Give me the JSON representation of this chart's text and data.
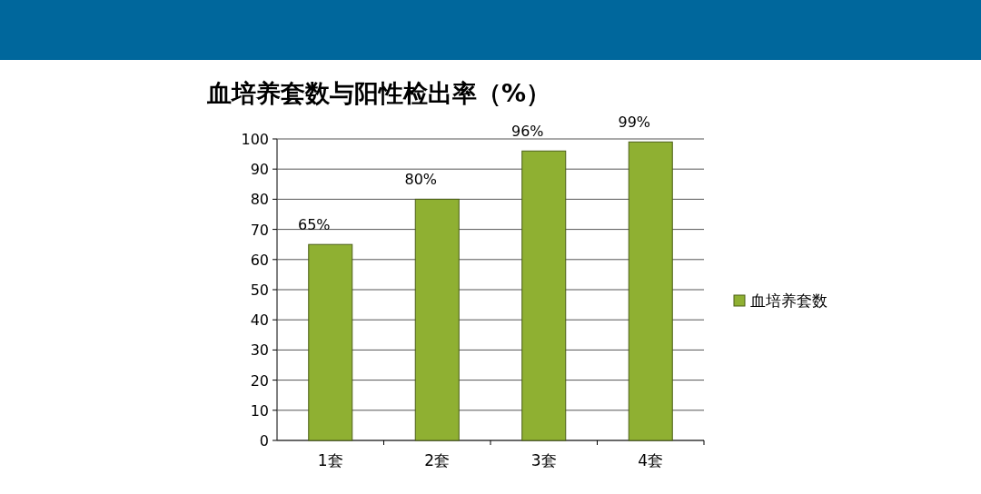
{
  "chart_data": {
    "type": "bar",
    "title": "血培养套数与阳性检出率（%）",
    "categories": [
      "1套",
      "2套",
      "3套",
      "4套"
    ],
    "series": [
      {
        "name": "血培养套数",
        "color": "#8fb032",
        "values": [
          65,
          80,
          96,
          99
        ],
        "value_labels": [
          "65%",
          "80%",
          "96%",
          "99%"
        ]
      }
    ],
    "ylim": [
      0,
      100
    ],
    "yticks": [
      0,
      10,
      20,
      30,
      40,
      50,
      60,
      70,
      80,
      90,
      100
    ],
    "grid": "y",
    "legend": "right"
  }
}
